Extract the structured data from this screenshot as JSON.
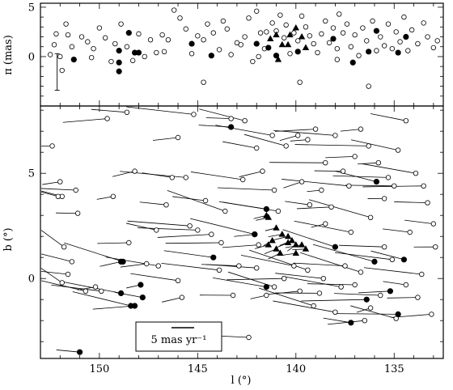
{
  "chart_data": [
    {
      "type": "scatter",
      "panel": "parallax",
      "xlabel": "l (°)",
      "ylabel": "π (mas)",
      "xlim": [
        153,
        132.5
      ],
      "ylim": [
        -5,
        5.4
      ],
      "yticks": [
        {
          "v": -5,
          "label": ""
        },
        {
          "v": 0,
          "label": "0"
        },
        {
          "v": 5,
          "label": "5"
        }
      ],
      "error_bar": {
        "x": 152.15,
        "y_low": -3.4,
        "y_high": 0.3
      },
      "series": [
        {
          "marker": "filled-circle",
          "points": [
            [
              151.3,
              -0.3
            ],
            [
              149.0,
              -1.5
            ],
            [
              149.0,
              0.6
            ],
            [
              149.0,
              -0.6
            ],
            [
              148.5,
              2.4
            ],
            [
              148.2,
              0.4
            ],
            [
              148.0,
              0.4
            ],
            [
              145.3,
              1.3
            ],
            [
              144.3,
              0.1
            ],
            [
              142.0,
              1.3
            ],
            [
              141.4,
              0.9
            ],
            [
              141.0,
              0.1
            ],
            [
              139.9,
              0.5
            ],
            [
              138.1,
              1.8
            ],
            [
              137.1,
              -0.6
            ],
            [
              136.3,
              0.5
            ],
            [
              135.9,
              2.6
            ],
            [
              134.8,
              0.4
            ],
            [
              134.4,
              2.0
            ]
          ]
        },
        {
          "marker": "filled-triangle",
          "points": [
            [
              141.3,
              1.8
            ],
            [
              141.0,
              2.2
            ],
            [
              140.7,
              1.2
            ],
            [
              140.4,
              1.2
            ],
            [
              140.3,
              2.2
            ],
            [
              140.0,
              2.9
            ],
            [
              139.7,
              2.0
            ],
            [
              139.5,
              0.9
            ],
            [
              140.9,
              -0.3
            ]
          ]
        },
        {
          "marker": "open-circle",
          "points": [
            [
              152.5,
              0.2
            ],
            [
              152.3,
              1.2
            ],
            [
              152.2,
              2.3
            ],
            [
              152.0,
              0.0
            ],
            [
              151.9,
              -1.4
            ],
            [
              151.7,
              3.3
            ],
            [
              151.6,
              2.2
            ],
            [
              151.4,
              1.0
            ],
            [
              150.9,
              2.0
            ],
            [
              150.6,
              1.5
            ],
            [
              150.3,
              0.8
            ],
            [
              150.0,
              2.9
            ],
            [
              149.7,
              1.9
            ],
            [
              149.4,
              -0.5
            ],
            [
              149.2,
              1.3
            ],
            [
              148.9,
              3.3
            ],
            [
              148.6,
              1.0
            ],
            [
              148.3,
              -0.4
            ],
            [
              148.0,
              2.3
            ],
            [
              147.7,
              0.0
            ],
            [
              147.4,
              1.7
            ],
            [
              147.1,
              0.4
            ],
            [
              146.8,
              2.2
            ],
            [
              146.5,
              1.7
            ],
            [
              146.2,
              4.7
            ],
            [
              145.9,
              3.9
            ],
            [
              145.6,
              2.8
            ],
            [
              145.3,
              0.3
            ],
            [
              145.0,
              2.1
            ],
            [
              144.7,
              1.7
            ],
            [
              144.5,
              3.3
            ],
            [
              144.2,
              2.4
            ],
            [
              143.9,
              0.7
            ],
            [
              143.7,
              3.6
            ],
            [
              143.5,
              2.8
            ],
            [
              143.3,
              0.2
            ],
            [
              143.0,
              1.4
            ],
            [
              142.8,
              1.2
            ],
            [
              142.6,
              2.0
            ],
            [
              142.4,
              3.9
            ],
            [
              142.2,
              -0.5
            ],
            [
              142.0,
              4.6
            ],
            [
              141.8,
              2.4
            ],
            [
              141.6,
              0.8
            ],
            [
              141.5,
              2.5
            ],
            [
              141.2,
              3.4
            ],
            [
              141.0,
              2.6
            ],
            [
              140.8,
              4.2
            ],
            [
              140.6,
              1.9
            ],
            [
              140.5,
              3.2
            ],
            [
              140.3,
              0.3
            ],
            [
              140.1,
              2.4
            ],
            [
              139.9,
              1.6
            ],
            [
              139.7,
              4.1
            ],
            [
              139.5,
              3.0
            ],
            [
              139.3,
              2.1
            ],
            [
              139.1,
              1.3
            ],
            [
              138.9,
              0.4
            ],
            [
              138.7,
              2.3
            ],
            [
              138.5,
              3.6
            ],
            [
              138.3,
              1.4
            ],
            [
              138.1,
              2.9
            ],
            [
              137.9,
              0.8
            ],
            [
              137.8,
              4.3
            ],
            [
              137.6,
              2.4
            ],
            [
              137.4,
              3.3
            ],
            [
              137.2,
              1.0
            ],
            [
              137.0,
              2.2
            ],
            [
              136.8,
              0.1
            ],
            [
              136.6,
              2.9
            ],
            [
              136.4,
              1.6
            ],
            [
              136.3,
              -3.0
            ],
            [
              136.1,
              3.6
            ],
            [
              135.9,
              0.6
            ],
            [
              135.7,
              2.0
            ],
            [
              135.5,
              1.1
            ],
            [
              135.3,
              3.3
            ],
            [
              135.1,
              0.8
            ],
            [
              134.9,
              2.5
            ],
            [
              134.7,
              1.5
            ],
            [
              134.5,
              4.0
            ],
            [
              134.3,
              0.6
            ],
            [
              134.1,
              2.7
            ],
            [
              133.8,
              1.3
            ],
            [
              133.5,
              3.4
            ],
            [
              133.3,
              2.0
            ],
            [
              133.0,
              0.9
            ],
            [
              132.8,
              1.6
            ],
            [
              137.9,
              -0.3
            ],
            [
              139.8,
              -2.6
            ],
            [
              144.7,
              -2.6
            ],
            [
              150.4,
              -0.1
            ],
            [
              146.7,
              0.5
            ],
            [
              141.9,
              0.0
            ]
          ]
        }
      ]
    },
    {
      "type": "scatter",
      "panel": "proper-motion",
      "xlabel": "l (°)",
      "ylabel": "b (°)",
      "xlim": [
        153,
        132.5
      ],
      "ylim": [
        -3.8,
        8.2
      ],
      "xticks": [
        {
          "v": 150,
          "label": "150"
        },
        {
          "v": 145,
          "label": "145"
        },
        {
          "v": 140,
          "label": "140"
        },
        {
          "v": 135,
          "label": "135"
        }
      ],
      "yticks": [
        {
          "v": 0,
          "label": "0"
        },
        {
          "v": 5,
          "label": "5"
        }
      ],
      "scale_bar_label": "5 mas yr⁻¹",
      "series": [
        {
          "marker": "filled-circle",
          "points": [
            [
              151.0,
              -3.5
            ],
            [
              148.9,
              0.8
            ],
            [
              148.8,
              0.8
            ],
            [
              148.9,
              -0.7
            ],
            [
              148.4,
              -1.3
            ],
            [
              148.2,
              -1.3
            ],
            [
              147.9,
              -0.3
            ],
            [
              147.8,
              -0.9
            ],
            [
              144.2,
              1.0
            ],
            [
              142.1,
              2.1
            ],
            [
              141.5,
              3.3
            ],
            [
              141.5,
              -0.4
            ],
            [
              138.0,
              1.5
            ],
            [
              137.2,
              -2.1
            ],
            [
              136.4,
              -1.0
            ],
            [
              136.0,
              0.8
            ],
            [
              135.9,
              4.6
            ],
            [
              135.2,
              -0.6
            ],
            [
              134.8,
              -1.7
            ],
            [
              134.5,
              0.9
            ],
            [
              143.3,
              7.2
            ],
            [
              142.1,
              2.1
            ]
          ]
        },
        {
          "marker": "filled-triangle",
          "points": [
            [
              141.4,
              2.9
            ],
            [
              141.0,
              2.4
            ],
            [
              140.7,
              2.1
            ],
            [
              140.4,
              2.0
            ],
            [
              140.2,
              1.8
            ],
            [
              140.0,
              1.6
            ],
            [
              139.7,
              1.6
            ],
            [
              139.5,
              1.4
            ],
            [
              141.2,
              1.8
            ],
            [
              141.0,
              1.4
            ],
            [
              140.8,
              1.2
            ],
            [
              140.4,
              1.7
            ],
            [
              140.0,
              1.2
            ],
            [
              141.5,
              3.0
            ],
            [
              141.4,
              1.6
            ]
          ]
        },
        {
          "marker": "open-circle",
          "points": [
            [
              152.4,
              6.3
            ],
            [
              152.0,
              4.6
            ],
            [
              151.9,
              3.9
            ],
            [
              152.1,
              3.9
            ],
            [
              151.8,
              1.5
            ],
            [
              151.6,
              0.2
            ],
            [
              151.4,
              0.8
            ],
            [
              150.7,
              -0.6
            ],
            [
              150.2,
              -0.4
            ],
            [
              149.6,
              7.6
            ],
            [
              148.6,
              7.9
            ],
            [
              149.3,
              3.9
            ],
            [
              148.5,
              1.7
            ],
            [
              146.3,
              4.8
            ],
            [
              146.0,
              6.7
            ],
            [
              145.2,
              7.8
            ],
            [
              145.0,
              2.3
            ],
            [
              143.6,
              3.2
            ],
            [
              143.3,
              7.6
            ],
            [
              142.6,
              7.5
            ],
            [
              142.0,
              6.2
            ],
            [
              141.7,
              5.1
            ],
            [
              141.2,
              6.8
            ],
            [
              140.5,
              6.3
            ],
            [
              139.9,
              6.8
            ],
            [
              139.4,
              6.6
            ],
            [
              139.0,
              7.1
            ],
            [
              138.7,
              4.2
            ],
            [
              138.5,
              5.5
            ],
            [
              138.0,
              6.8
            ],
            [
              137.6,
              5.1
            ],
            [
              137.3,
              4.4
            ],
            [
              137.0,
              5.8
            ],
            [
              136.7,
              7.1
            ],
            [
              136.3,
              6.3
            ],
            [
              135.8,
              5.5
            ],
            [
              135.5,
              3.8
            ],
            [
              135.3,
              4.8
            ],
            [
              135.0,
              4.4
            ],
            [
              134.8,
              6.1
            ],
            [
              134.4,
              7.5
            ],
            [
              133.9,
              5.0
            ],
            [
              133.5,
              4.4
            ],
            [
              133.3,
              3.6
            ],
            [
              133.0,
              2.6
            ],
            [
              132.9,
              1.5
            ],
            [
              133.1,
              -1.7
            ],
            [
              133.8,
              -0.9
            ],
            [
              134.4,
              -0.3
            ],
            [
              134.9,
              -1.9
            ],
            [
              135.1,
              0.9
            ],
            [
              135.5,
              1.5
            ],
            [
              136.2,
              -1.4
            ],
            [
              136.5,
              -2.0
            ],
            [
              136.7,
              0.3
            ],
            [
              137.0,
              -0.3
            ],
            [
              137.5,
              0.6
            ],
            [
              137.7,
              -0.4
            ],
            [
              138.0,
              -1.6
            ],
            [
              138.6,
              0.0
            ],
            [
              138.8,
              -0.7
            ],
            [
              139.1,
              -1.3
            ],
            [
              139.4,
              0.4
            ],
            [
              139.8,
              -0.6
            ],
            [
              140.1,
              0.6
            ],
            [
              140.6,
              0.0
            ],
            [
              141.1,
              -0.4
            ],
            [
              141.5,
              -0.8
            ],
            [
              142.0,
              0.5
            ],
            [
              142.4,
              -2.8
            ],
            [
              143.2,
              -0.8
            ],
            [
              143.9,
              0.4
            ],
            [
              144.3,
              2.1
            ],
            [
              144.6,
              3.7
            ],
            [
              145.4,
              2.5
            ],
            [
              145.8,
              -0.9
            ],
            [
              146.6,
              3.5
            ],
            [
              147.1,
              2.3
            ],
            [
              147.6,
              0.7
            ],
            [
              148.2,
              5.1
            ],
            [
              149.9,
              -0.6
            ],
            [
              151.2,
              4.2
            ],
            [
              151.9,
              -0.2
            ],
            [
              151.1,
              3.1
            ],
            [
              147.0,
              0.6
            ],
            [
              146.0,
              -0.1
            ],
            [
              143.8,
              1.7
            ],
            [
              142.9,
              0.6
            ],
            [
              142.7,
              4.7
            ],
            [
              141.9,
              1.6
            ],
            [
              141.1,
              4.2
            ],
            [
              139.3,
              3.5
            ],
            [
              138.5,
              2.6
            ],
            [
              137.2,
              2.2
            ],
            [
              136.2,
              2.9
            ],
            [
              135.7,
              -0.8
            ],
            [
              134.2,
              2.2
            ],
            [
              133.6,
              0.2
            ],
            [
              138.2,
              3.4
            ],
            [
              140.9,
              3.2
            ],
            [
              139.7,
              4.6
            ],
            [
              145.6,
              4.8
            ]
          ]
        }
      ]
    }
  ]
}
